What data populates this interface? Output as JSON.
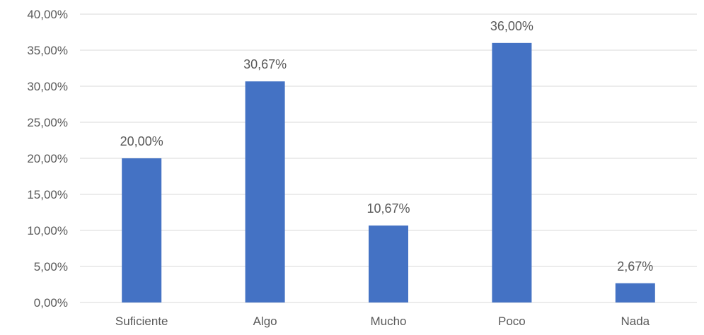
{
  "chart_data": {
    "type": "bar",
    "title": "",
    "xlabel": "",
    "ylabel": "",
    "categories": [
      "Suficiente",
      "Algo",
      "Mucho",
      "Poco",
      "Nada"
    ],
    "values": [
      20.0,
      30.67,
      10.67,
      36.0,
      2.67
    ],
    "data_labels": [
      "20,00%",
      "30,67%",
      "10,67%",
      "36,00%",
      "2,67%"
    ],
    "ylim": [
      0,
      40
    ],
    "y_ticks": [
      0,
      5,
      10,
      15,
      20,
      25,
      30,
      35,
      40
    ],
    "y_tick_labels": [
      "0,00%",
      "5,00%",
      "10,00%",
      "15,00%",
      "20,00%",
      "25,00%",
      "30,00%",
      "35,00%",
      "40,00%"
    ],
    "grid": true,
    "legend": "none",
    "colors": {
      "bar": "#4472C4",
      "grid": "#d9d9d9",
      "text": "#595959"
    }
  }
}
